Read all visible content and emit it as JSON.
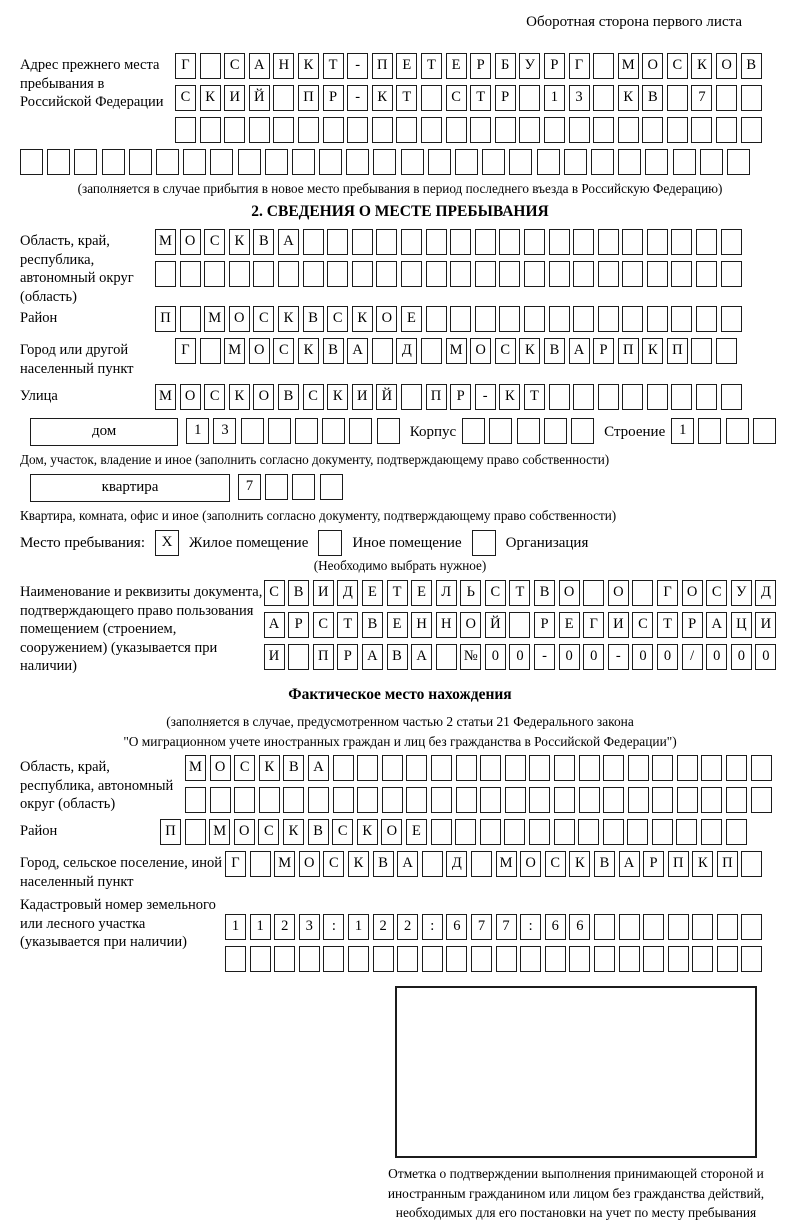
{
  "header": {
    "back_side_label": "Оборотная сторона первого листа"
  },
  "prev_stay": {
    "label": "Адрес прежнего места пребывания в Российской Федерации",
    "row1": "Г САНКТ-ПЕТЕРБУРГ МОСКОВ",
    "row2": "СКИЙ ПР-КТ СТР 13 КВ 7",
    "row3": "",
    "row4": "",
    "note": "(заполняется в случае прибытия в новое место пребывания в период последнего въезда в Российскую Федерацию)"
  },
  "section2": {
    "title": "2. СВЕДЕНИЯ О МЕСТЕ ПРЕБЫВАНИЯ",
    "region": {
      "label": "Область, край, республика, автономный округ (область)",
      "row1": "МОСКВА",
      "row2": ""
    },
    "district": {
      "label": "Район",
      "row1": "П МОСКВСКОЕ"
    },
    "city": {
      "label": "Город или другой населенный пункт",
      "row1": "Г МОСКВА Д МОСКВАРПКП"
    },
    "street": {
      "label": "Улица",
      "row1": "МОСКОВСКИЙ ПР-КТ"
    },
    "house": {
      "type_label": "дом",
      "value": "13",
      "korpus_label": "Корпус",
      "korpus_value": "",
      "stroenie_label": "Строение",
      "stroenie_value": "1",
      "note": "Дом, участок, владение и иное (заполнить согласно документу, подтверждающему право собственности)"
    },
    "apartment": {
      "type_label": "квартира",
      "value": "7",
      "note": "Квартира, комната, офис и иное (заполнить согласно документу, подтверждающему право собственности)"
    },
    "stay_type": {
      "label": "Место пребывания:",
      "options": [
        {
          "label": "Жилое помещение",
          "mark": "X"
        },
        {
          "label": "Иное помещение",
          "mark": ""
        },
        {
          "label": "Организация",
          "mark": ""
        }
      ],
      "note": "(Необходимо выбрать нужное)"
    },
    "document": {
      "label": "Наименование и реквизиты документа, подтверждающего право пользования помещением (строением, сооружением) (указывается при наличии)",
      "row1": "СВИДЕТЕЛЬСТВО О ГОСУД",
      "row2": "АРСТВЕННОЙ РЕГИСТРАЦИ",
      "row3": "И ПРАВА №00-00-00/000"
    }
  },
  "actual_location": {
    "title": "Фактическое место нахождения",
    "note1": "(заполняется в случае, предусмотренном частью 2 статьи 21 Федерального закона",
    "note2": "\"О миграционном учете иностранных граждан и лиц без гражданства в Российской Федерации\")",
    "region": {
      "label": "Область, край, республика, автономный округ (область)",
      "row1": "МОСКВА",
      "row2": ""
    },
    "district": {
      "label": "Район",
      "row1": "П МОСКВСКОЕ"
    },
    "city": {
      "label": "Город, сельское поселение, иной населенный пункт",
      "row1": "Г МОСКВА Д МОСКВАРПКП"
    },
    "cadastre": {
      "label": "Кадастровый номер земельного или лесного участка (указывается при наличии)",
      "row1": "1123:122:677:66",
      "row2": ""
    }
  },
  "stamp": {
    "caption": "Отметка о подтверждении выполнения принимающей стороной и иностранным гражданином или лицом без гражданства действий, необходимых для его постановки на учет по месту пребывания"
  }
}
